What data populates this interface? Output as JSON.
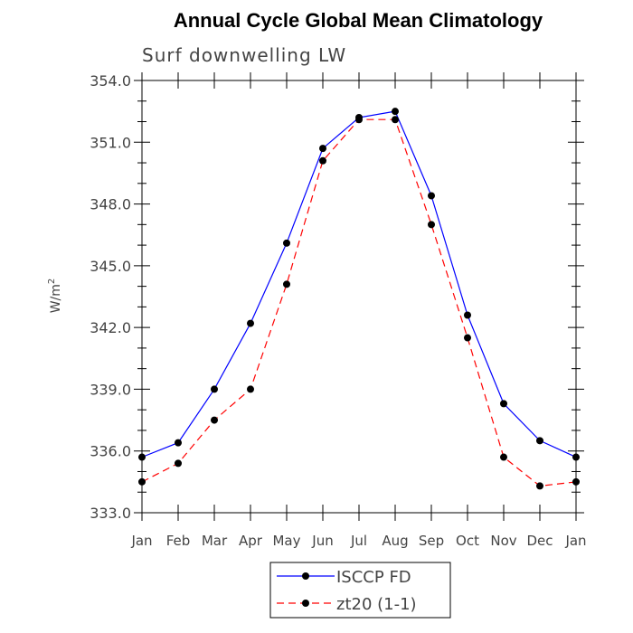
{
  "chart_data": {
    "type": "line",
    "title": "Annual Cycle Global Mean Climatology",
    "subtitle": "Surf downwelling LW",
    "xlabel": "",
    "ylabel": "W/m",
    "ylabel_superscript": "2",
    "categories": [
      "Jan",
      "Feb",
      "Mar",
      "Apr",
      "May",
      "Jun",
      "Jul",
      "Aug",
      "Sep",
      "Oct",
      "Nov",
      "Dec",
      "Jan"
    ],
    "ylim": [
      333.0,
      354.0
    ],
    "yticks": [
      333.0,
      336.0,
      339.0,
      342.0,
      345.0,
      348.0,
      351.0,
      354.0
    ],
    "ytick_labels": [
      "333.0",
      "336.0",
      "339.0",
      "342.0",
      "345.0",
      "348.0",
      "351.0",
      "354.0"
    ],
    "series": [
      {
        "name": "ISCCP FD",
        "color": "#0000ff",
        "dash": "solid",
        "values": [
          335.7,
          336.4,
          339.0,
          342.2,
          346.1,
          350.7,
          352.2,
          352.5,
          348.4,
          342.6,
          338.3,
          336.5,
          335.7
        ]
      },
      {
        "name": "zt20 (1-1)",
        "color": "#ff0000",
        "dash": "dashed",
        "values": [
          334.5,
          335.4,
          337.5,
          339.0,
          344.1,
          350.1,
          352.1,
          352.1,
          347.0,
          341.5,
          335.7,
          334.3,
          334.5
        ]
      }
    ]
  }
}
